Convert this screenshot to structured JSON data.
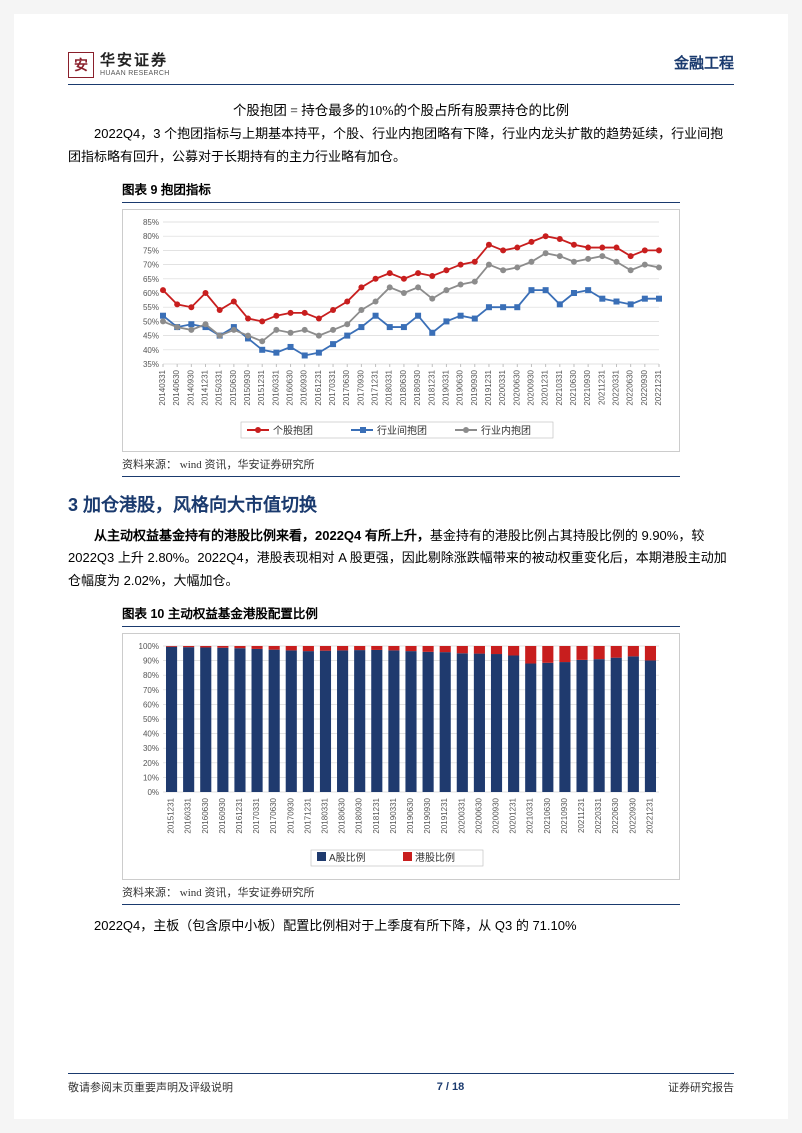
{
  "header": {
    "logo_char": "安",
    "logo_cn": "华安证券",
    "logo_en": "HUAAN RESEARCH",
    "right": "金融工程"
  },
  "formula": "个股抱团 = 持仓最多的10%的个股占所有股票持仓的比例",
  "para1": "2022Q4，3 个抱团指标与上期基本持平，个股、行业内抱团略有下降，行业内龙头扩散的趋势延续，行业间抱团指标略有回升，公募对于长期持有的主力行业略有加仓。",
  "chart9": {
    "title": "图表  9  抱团指标",
    "source": "资料来源：  wind 资讯，华安证券研究所",
    "type": "line",
    "ylim": [
      35,
      85
    ],
    "ytick_step": 5,
    "y_ticks": [
      "35%",
      "40%",
      "45%",
      "50%",
      "55%",
      "60%",
      "65%",
      "70%",
      "75%",
      "80%",
      "85%"
    ],
    "x_labels": [
      "20140331",
      "20140630",
      "20140930",
      "20141231",
      "20150331",
      "20150630",
      "20150930",
      "20151231",
      "20160331",
      "20160630",
      "20160930",
      "20161231",
      "20170331",
      "20170630",
      "20170930",
      "20171231",
      "20180331",
      "20180630",
      "20180930",
      "20181231",
      "20190331",
      "20190630",
      "20190930",
      "20191231",
      "20200331",
      "20200630",
      "20200930",
      "20201231",
      "20210331",
      "20210630",
      "20210930",
      "20211231",
      "20220331",
      "20220630",
      "20220930",
      "20221231"
    ],
    "series": [
      {
        "name": "个股抱团",
        "color": "#c81e1e",
        "marker": "circle",
        "values": [
          61,
          56,
          55,
          60,
          54,
          57,
          51,
          50,
          52,
          53,
          53,
          51,
          54,
          57,
          62,
          65,
          67,
          65,
          67,
          66,
          68,
          70,
          71,
          77,
          75,
          76,
          78,
          80,
          79,
          77,
          76,
          76,
          76,
          73,
          75,
          75
        ]
      },
      {
        "name": "行业间抱团",
        "color": "#3a6fb7",
        "marker": "square",
        "values": [
          52,
          48,
          49,
          48,
          45,
          48,
          44,
          40,
          39,
          41,
          38,
          39,
          42,
          45,
          48,
          52,
          48,
          48,
          52,
          46,
          50,
          52,
          51,
          55,
          55,
          55,
          61,
          61,
          56,
          60,
          61,
          58,
          57,
          56,
          58,
          58
        ]
      },
      {
        "name": "行业内抱团",
        "color": "#8c8c8c",
        "marker": "circle",
        "values": [
          50,
          48,
          47,
          49,
          45,
          47,
          45,
          43,
          47,
          46,
          47,
          45,
          47,
          49,
          54,
          57,
          62,
          60,
          62,
          58,
          61,
          63,
          64,
          70,
          68,
          69,
          71,
          74,
          73,
          71,
          72,
          73,
          71,
          68,
          70,
          69
        ]
      }
    ],
    "legend": [
      "个股抱团",
      "行业间抱团",
      "行业内抱团"
    ],
    "line_width": 1.8,
    "marker_size": 3,
    "grid_color": "#d9d9d9",
    "axis_color": "#bfbfbf",
    "background_color": "#ffffff",
    "tick_fontsize": 8,
    "legend_fontsize": 10
  },
  "section3_title": "3  加仓港股，风格向大市值切换",
  "para2a": "从主动权益基金持有的港股比例来看，2022Q4 有所上升，",
  "para2b": "基金持有的港股比例占其持股比例的 9.90%，较 2022Q3 上升 2.80%。2022Q4，港股表现相对 A 股更强，因此剔除涨跌幅带来的被动权重变化后，本期港股主动加仓幅度为 2.02%，大幅加仓。",
  "chart10": {
    "title": "图表  10  主动权益基金港股配置比例",
    "source": "资料来源：  wind 资讯，华安证券研究所",
    "type": "stacked-bar",
    "ylim": [
      0,
      100
    ],
    "ytick_step": 10,
    "y_ticks": [
      "0%",
      "10%",
      "20%",
      "30%",
      "40%",
      "50%",
      "60%",
      "70%",
      "80%",
      "90%",
      "100%"
    ],
    "x_labels": [
      "20151231",
      "20160331",
      "20160630",
      "20160930",
      "20161231",
      "20170331",
      "20170630",
      "20170930",
      "20171231",
      "20180331",
      "20180630",
      "20180930",
      "20181231",
      "20190331",
      "20190630",
      "20190930",
      "20191231",
      "20200331",
      "20200630",
      "20200930",
      "20201231",
      "20210331",
      "20210630",
      "20210930",
      "20211231",
      "20220331",
      "20220630",
      "20220930",
      "20221231"
    ],
    "series": [
      {
        "name": "A股比例",
        "color": "#1f3a6e",
        "values": [
          99.5,
          99.2,
          99.0,
          98.8,
          98.5,
          98.0,
          97.5,
          97.0,
          96.5,
          96.8,
          97.0,
          97.2,
          97.3,
          97.0,
          96.5,
          96.0,
          95.8,
          95.0,
          94.8,
          94.5,
          93.5,
          88.0,
          88.5,
          89.0,
          90.5,
          91.0,
          92.0,
          92.9,
          90.1
        ]
      },
      {
        "name": "港股比例",
        "color": "#c81e1e",
        "values": [
          0.5,
          0.8,
          1.0,
          1.2,
          1.5,
          2.0,
          2.5,
          3.0,
          3.5,
          3.2,
          3.0,
          2.8,
          2.7,
          3.0,
          3.5,
          4.0,
          4.2,
          5.0,
          5.2,
          5.5,
          6.5,
          12.0,
          11.5,
          11.0,
          9.5,
          9.0,
          8.0,
          7.1,
          9.9
        ]
      }
    ],
    "legend": [
      "A股比例",
      "港股比例"
    ],
    "bar_gap_ratio": 0.35,
    "grid_color": "#d9d9d9",
    "axis_color": "#bfbfbf",
    "background_color": "#ffffff",
    "tick_fontsize": 8,
    "legend_fontsize": 10
  },
  "para3": "2022Q4，主板（包含原中小板）配置比例相对于上季度有所下降，从 Q3 的 71.10%",
  "footer": {
    "left": "敬请参阅末页重要声明及评级说明",
    "page": "7 / 18",
    "right": "证券研究报告"
  }
}
